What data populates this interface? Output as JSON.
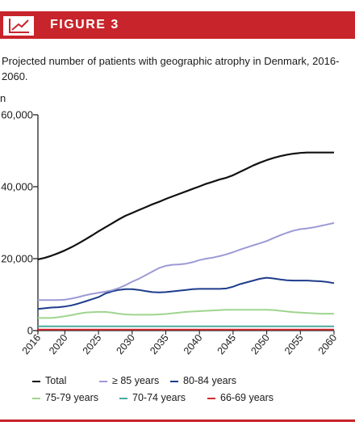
{
  "figure": {
    "label": "FIGURE 3",
    "caption": "Projected number of patients with geographic atrophy in Denmark, 2016-2060.",
    "unit": "n",
    "accent_color": "#c8242b",
    "icon": "line-chart-icon"
  },
  "chart_data": {
    "type": "line",
    "title": "Projected number of patients with geographic atrophy in Denmark, 2016-2060.",
    "ylabel": "n",
    "xlabel": "",
    "ylim": [
      0,
      60000
    ],
    "xlim": [
      2016,
      2060
    ],
    "y_ticks": [
      0,
      20000,
      40000,
      60000
    ],
    "y_tick_labels": [
      "0",
      "20,000",
      "40,000",
      "60,000"
    ],
    "x_ticks": [
      2016,
      2020,
      2025,
      2030,
      2035,
      2040,
      2045,
      2050,
      2055,
      2060
    ],
    "x_tick_labels": [
      "2016",
      "2020",
      "2025",
      "2030",
      "2035",
      "2040",
      "2045",
      "2050",
      "2055",
      "2060"
    ],
    "grid": false,
    "legend_position": "bottom",
    "x": [
      2016,
      2017,
      2018,
      2019,
      2020,
      2021,
      2022,
      2023,
      2024,
      2025,
      2026,
      2027,
      2028,
      2029,
      2030,
      2031,
      2032,
      2033,
      2034,
      2035,
      2036,
      2037,
      2038,
      2039,
      2040,
      2041,
      2042,
      2043,
      2044,
      2045,
      2046,
      2047,
      2048,
      2049,
      2050,
      2051,
      2052,
      2053,
      2054,
      2055,
      2056,
      2057,
      2058,
      2059,
      2060
    ],
    "series": [
      {
        "name": "Total",
        "color": "#111111",
        "values": [
          19800,
          20200,
          20800,
          21500,
          22300,
          23200,
          24200,
          25300,
          26400,
          27600,
          28700,
          29800,
          30900,
          31900,
          32700,
          33500,
          34300,
          35100,
          35800,
          36600,
          37300,
          38000,
          38700,
          39400,
          40100,
          40800,
          41400,
          42000,
          42500,
          43200,
          44100,
          45000,
          45900,
          46700,
          47400,
          48000,
          48500,
          48900,
          49200,
          49400,
          49500,
          49500,
          49500,
          49500,
          49500
        ]
      },
      {
        "name": "≥ 85 years",
        "color": "#9c9ad6",
        "values": [
          8500,
          8500,
          8500,
          8500,
          8600,
          8900,
          9300,
          9800,
          10200,
          10500,
          10800,
          11200,
          11800,
          12600,
          13600,
          14400,
          15400,
          16400,
          17400,
          18000,
          18300,
          18400,
          18600,
          19000,
          19600,
          20000,
          20300,
          20700,
          21200,
          21800,
          22500,
          23100,
          23700,
          24300,
          24900,
          25700,
          26500,
          27200,
          27800,
          28200,
          28400,
          28700,
          29100,
          29500,
          29900
        ]
      },
      {
        "name": "80-84 years",
        "color": "#1e3c8c",
        "values": [
          6000,
          6200,
          6400,
          6500,
          6700,
          7000,
          7500,
          8100,
          8700,
          9300,
          10300,
          10900,
          11300,
          11500,
          11500,
          11300,
          11000,
          10700,
          10600,
          10700,
          10900,
          11100,
          11300,
          11500,
          11600,
          11600,
          11600,
          11600,
          11700,
          12200,
          12900,
          13400,
          13900,
          14400,
          14700,
          14500,
          14200,
          14000,
          13900,
          13900,
          13900,
          13800,
          13700,
          13500,
          13200
        ]
      },
      {
        "name": "75-79 years",
        "color": "#9fd58e",
        "values": [
          3500,
          3500,
          3500,
          3700,
          4000,
          4300,
          4700,
          5000,
          5100,
          5200,
          5200,
          5000,
          4700,
          4500,
          4400,
          4400,
          4400,
          4400,
          4500,
          4600,
          4800,
          5000,
          5200,
          5300,
          5400,
          5500,
          5600,
          5700,
          5800,
          5800,
          5800,
          5800,
          5800,
          5800,
          5800,
          5700,
          5500,
          5300,
          5100,
          5000,
          4900,
          4800,
          4700,
          4700,
          4700
        ]
      },
      {
        "name": "70-74 years",
        "color": "#4aa8a0",
        "values": [
          1200,
          1200,
          1200,
          1200,
          1200,
          1200,
          1200,
          1200,
          1200,
          1200,
          1200,
          1200,
          1200,
          1200,
          1200,
          1200,
          1200,
          1200,
          1200,
          1200,
          1200,
          1200,
          1200,
          1200,
          1200,
          1200,
          1200,
          1200,
          1200,
          1200,
          1200,
          1200,
          1200,
          1200,
          1200,
          1200,
          1200,
          1200,
          1200,
          1200,
          1200,
          1200,
          1200,
          1200,
          1200
        ]
      },
      {
        "name": "66-69 years",
        "color": "#d42a2f",
        "values": [
          300,
          300,
          300,
          300,
          300,
          300,
          300,
          300,
          300,
          300,
          300,
          300,
          300,
          300,
          300,
          300,
          300,
          300,
          300,
          300,
          300,
          300,
          300,
          300,
          300,
          300,
          300,
          300,
          300,
          300,
          300,
          300,
          300,
          300,
          300,
          300,
          300,
          300,
          300,
          300,
          300,
          300,
          300,
          300,
          300
        ]
      }
    ]
  }
}
